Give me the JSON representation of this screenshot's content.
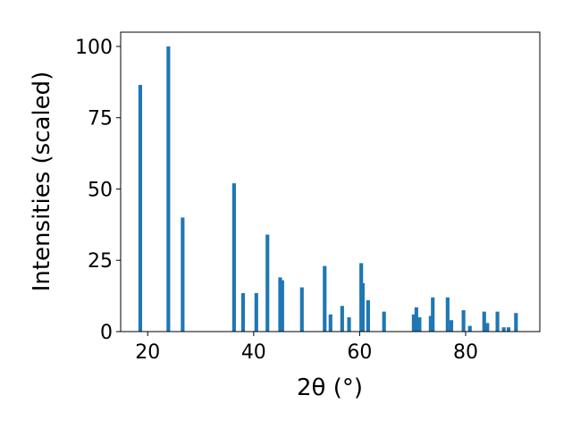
{
  "chart_data": {
    "type": "bar",
    "xlabel": "2θ (°)",
    "ylabel": "Intensities (scaled)",
    "xlim": [
      14.9,
      94.0
    ],
    "ylim": [
      0,
      105
    ],
    "x_ticks": [
      "20",
      "40",
      "60",
      "80"
    ],
    "x_tick_values": [
      20,
      40,
      60,
      80
    ],
    "y_ticks": [
      "0",
      "25",
      "50",
      "75",
      "100"
    ],
    "y_tick_values": [
      0,
      25,
      50,
      75,
      100
    ],
    "bar_color": "#1f77b4",
    "bar_width": 0.7,
    "x": [
      18.6,
      23.9,
      26.6,
      36.3,
      38.0,
      40.5,
      42.6,
      45.0,
      45.4,
      49.1,
      53.4,
      54.5,
      56.7,
      58.0,
      60.3,
      60.6,
      61.6,
      64.6,
      70.2,
      70.7,
      71.3,
      73.4,
      73.8,
      76.6,
      77.3,
      79.6,
      80.8,
      83.5,
      84.1,
      86.0,
      87.2,
      88.1,
      89.5
    ],
    "values": [
      86.5,
      100,
      40,
      52,
      13.5,
      13.5,
      34,
      19,
      18,
      15.5,
      23,
      6,
      9,
      5,
      24,
      17,
      11,
      7,
      6,
      8.5,
      5,
      5.5,
      12,
      12,
      4,
      7.5,
      2,
      7,
      3,
      7,
      1.5,
      1.5,
      6.5
    ]
  }
}
